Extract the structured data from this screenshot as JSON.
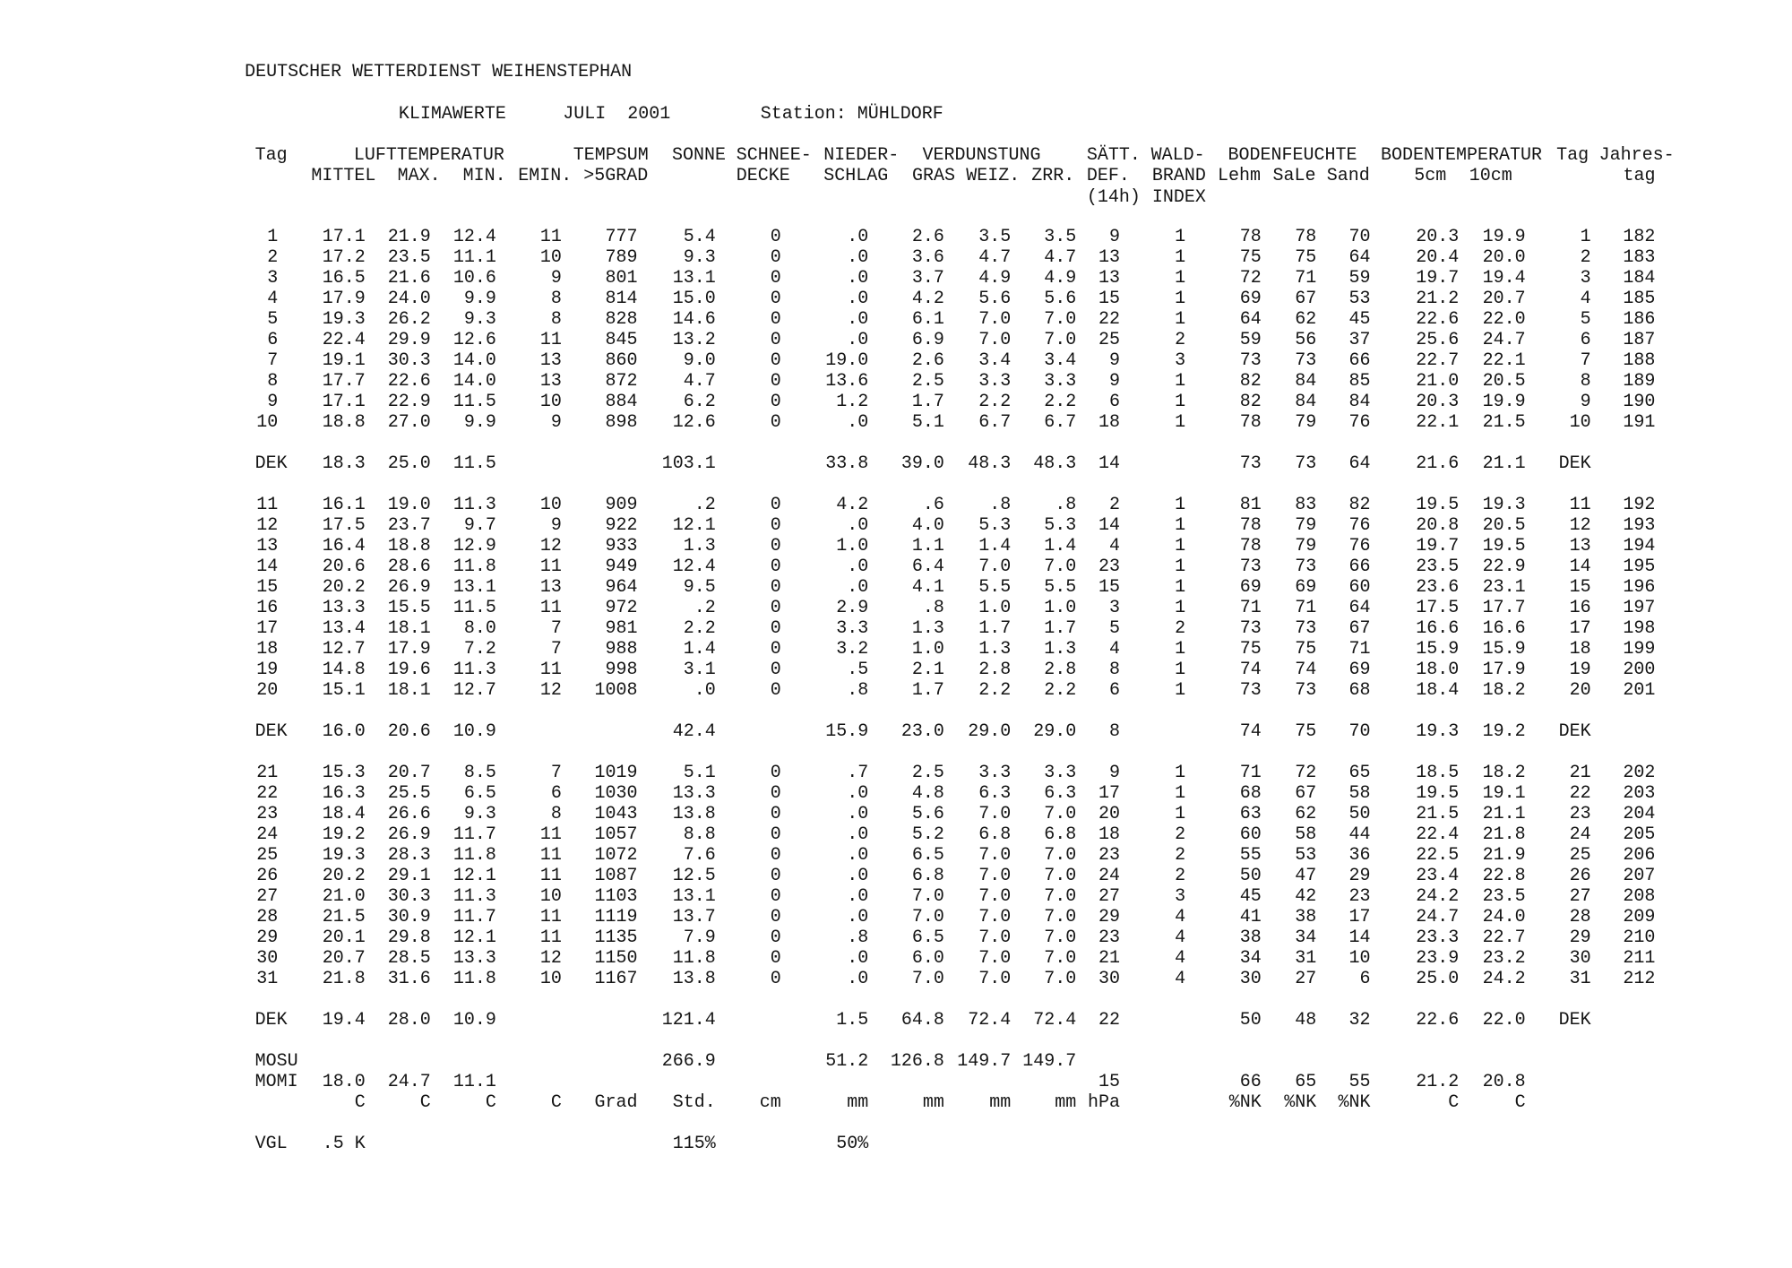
{
  "header": {
    "institution": "DEUTSCHER WETTERDIENST WEIHENSTEPHAN",
    "title": "KLIMAWERTE",
    "period": "JULI  2001",
    "station": "Station: MÜHLDORF"
  },
  "columns": {
    "row1": [
      "Tag",
      "LUFTTEMPERATUR",
      "TEMPSUM",
      "SONNE",
      "SCHNEE-",
      "NIEDER-",
      "VERDUNSTUNG",
      "SÄTT.",
      "WALD-",
      "BODENFEUCHTE",
      "BODENTEMPERATUR",
      "Tag",
      "Jahres-"
    ],
    "row2": [
      "MITTEL",
      "MAX.",
      "MIN.",
      "EMIN.",
      ">5GRAD",
      "DECKE",
      "SCHLAG",
      "GRAS",
      "WEIZ.",
      "ZRR.",
      "DEF.",
      "BRAND",
      "Lehm",
      "SaLe",
      "Sand",
      "5cm",
      "10cm",
      "tag"
    ],
    "row3": [
      "(14h)",
      "INDEX"
    ]
  },
  "table": {
    "blocks": [
      {
        "rows": [
          [
            "1",
            "17.1",
            "21.9",
            "12.4",
            "11",
            "777",
            "5.4",
            "0",
            ".0",
            "2.6",
            "3.5",
            "3.5",
            "9",
            "1",
            "78",
            "78",
            "70",
            "20.3",
            "19.9",
            "1",
            "182"
          ],
          [
            "2",
            "17.2",
            "23.5",
            "11.1",
            "10",
            "789",
            "9.3",
            "0",
            ".0",
            "3.6",
            "4.7",
            "4.7",
            "13",
            "1",
            "75",
            "75",
            "64",
            "20.4",
            "20.0",
            "2",
            "183"
          ],
          [
            "3",
            "16.5",
            "21.6",
            "10.6",
            "9",
            "801",
            "13.1",
            "0",
            ".0",
            "3.7",
            "4.9",
            "4.9",
            "13",
            "1",
            "72",
            "71",
            "59",
            "19.7",
            "19.4",
            "3",
            "184"
          ],
          [
            "4",
            "17.9",
            "24.0",
            "9.9",
            "8",
            "814",
            "15.0",
            "0",
            ".0",
            "4.2",
            "5.6",
            "5.6",
            "15",
            "1",
            "69",
            "67",
            "53",
            "21.2",
            "20.7",
            "4",
            "185"
          ],
          [
            "5",
            "19.3",
            "26.2",
            "9.3",
            "8",
            "828",
            "14.6",
            "0",
            ".0",
            "6.1",
            "7.0",
            "7.0",
            "22",
            "1",
            "64",
            "62",
            "45",
            "22.6",
            "22.0",
            "5",
            "186"
          ],
          [
            "6",
            "22.4",
            "29.9",
            "12.6",
            "11",
            "845",
            "13.2",
            "0",
            ".0",
            "6.9",
            "7.0",
            "7.0",
            "25",
            "2",
            "59",
            "56",
            "37",
            "25.6",
            "24.7",
            "6",
            "187"
          ],
          [
            "7",
            "19.1",
            "30.3",
            "14.0",
            "13",
            "860",
            "9.0",
            "0",
            "19.0",
            "2.6",
            "3.4",
            "3.4",
            "9",
            "3",
            "73",
            "73",
            "66",
            "22.7",
            "22.1",
            "7",
            "188"
          ],
          [
            "8",
            "17.7",
            "22.6",
            "14.0",
            "13",
            "872",
            "4.7",
            "0",
            "13.6",
            "2.5",
            "3.3",
            "3.3",
            "9",
            "1",
            "82",
            "84",
            "85",
            "21.0",
            "20.5",
            "8",
            "189"
          ],
          [
            "9",
            "17.1",
            "22.9",
            "11.5",
            "10",
            "884",
            "6.2",
            "0",
            "1.2",
            "1.7",
            "2.2",
            "2.2",
            "6",
            "1",
            "82",
            "84",
            "84",
            "20.3",
            "19.9",
            "9",
            "190"
          ],
          [
            "10",
            "18.8",
            "27.0",
            "9.9",
            "9",
            "898",
            "12.6",
            "0",
            ".0",
            "5.1",
            "6.7",
            "6.7",
            "18",
            "1",
            "78",
            "79",
            "76",
            "22.1",
            "21.5",
            "10",
            "191"
          ]
        ]
      },
      {
        "rows": [
          [
            "DEK",
            "18.3",
            "25.0",
            "11.5",
            null,
            null,
            "103.1",
            null,
            "33.8",
            "39.0",
            "48.3",
            "48.3",
            "14",
            null,
            "73",
            "73",
            "64",
            "21.6",
            "21.1",
            "DEK",
            null
          ]
        ]
      },
      {
        "rows": [
          [
            "11",
            "16.1",
            "19.0",
            "11.3",
            "10",
            "909",
            ".2",
            "0",
            "4.2",
            ".6",
            ".8",
            ".8",
            "2",
            "1",
            "81",
            "83",
            "82",
            "19.5",
            "19.3",
            "11",
            "192"
          ],
          [
            "12",
            "17.5",
            "23.7",
            "9.7",
            "9",
            "922",
            "12.1",
            "0",
            ".0",
            "4.0",
            "5.3",
            "5.3",
            "14",
            "1",
            "78",
            "79",
            "76",
            "20.8",
            "20.5",
            "12",
            "193"
          ],
          [
            "13",
            "16.4",
            "18.8",
            "12.9",
            "12",
            "933",
            "1.3",
            "0",
            "1.0",
            "1.1",
            "1.4",
            "1.4",
            "4",
            "1",
            "78",
            "79",
            "76",
            "19.7",
            "19.5",
            "13",
            "194"
          ],
          [
            "14",
            "20.6",
            "28.6",
            "11.8",
            "11",
            "949",
            "12.4",
            "0",
            ".0",
            "6.4",
            "7.0",
            "7.0",
            "23",
            "1",
            "73",
            "73",
            "66",
            "23.5",
            "22.9",
            "14",
            "195"
          ],
          [
            "15",
            "20.2",
            "26.9",
            "13.1",
            "13",
            "964",
            "9.5",
            "0",
            ".0",
            "4.1",
            "5.5",
            "5.5",
            "15",
            "1",
            "69",
            "69",
            "60",
            "23.6",
            "23.1",
            "15",
            "196"
          ],
          [
            "16",
            "13.3",
            "15.5",
            "11.5",
            "11",
            "972",
            ".2",
            "0",
            "2.9",
            ".8",
            "1.0",
            "1.0",
            "3",
            "1",
            "71",
            "71",
            "64",
            "17.5",
            "17.7",
            "16",
            "197"
          ],
          [
            "17",
            "13.4",
            "18.1",
            "8.0",
            "7",
            "981",
            "2.2",
            "0",
            "3.3",
            "1.3",
            "1.7",
            "1.7",
            "5",
            "2",
            "73",
            "73",
            "67",
            "16.6",
            "16.6",
            "17",
            "198"
          ],
          [
            "18",
            "12.7",
            "17.9",
            "7.2",
            "7",
            "988",
            "1.4",
            "0",
            "3.2",
            "1.0",
            "1.3",
            "1.3",
            "4",
            "1",
            "75",
            "75",
            "71",
            "15.9",
            "15.9",
            "18",
            "199"
          ],
          [
            "19",
            "14.8",
            "19.6",
            "11.3",
            "11",
            "998",
            "3.1",
            "0",
            ".5",
            "2.1",
            "2.8",
            "2.8",
            "8",
            "1",
            "74",
            "74",
            "69",
            "18.0",
            "17.9",
            "19",
            "200"
          ],
          [
            "20",
            "15.1",
            "18.1",
            "12.7",
            "12",
            "1008",
            ".0",
            "0",
            ".8",
            "1.7",
            "2.2",
            "2.2",
            "6",
            "1",
            "73",
            "73",
            "68",
            "18.4",
            "18.2",
            "20",
            "201"
          ]
        ]
      },
      {
        "rows": [
          [
            "DEK",
            "16.0",
            "20.6",
            "10.9",
            null,
            null,
            "42.4",
            null,
            "15.9",
            "23.0",
            "29.0",
            "29.0",
            "8",
            null,
            "74",
            "75",
            "70",
            "19.3",
            "19.2",
            "DEK",
            null
          ]
        ]
      },
      {
        "rows": [
          [
            "21",
            "15.3",
            "20.7",
            "8.5",
            "7",
            "1019",
            "5.1",
            "0",
            ".7",
            "2.5",
            "3.3",
            "3.3",
            "9",
            "1",
            "71",
            "72",
            "65",
            "18.5",
            "18.2",
            "21",
            "202"
          ],
          [
            "22",
            "16.3",
            "25.5",
            "6.5",
            "6",
            "1030",
            "13.3",
            "0",
            ".0",
            "4.8",
            "6.3",
            "6.3",
            "17",
            "1",
            "68",
            "67",
            "58",
            "19.5",
            "19.1",
            "22",
            "203"
          ],
          [
            "23",
            "18.4",
            "26.6",
            "9.3",
            "8",
            "1043",
            "13.8",
            "0",
            ".0",
            "5.6",
            "7.0",
            "7.0",
            "20",
            "1",
            "63",
            "62",
            "50",
            "21.5",
            "21.1",
            "23",
            "204"
          ],
          [
            "24",
            "19.2",
            "26.9",
            "11.7",
            "11",
            "1057",
            "8.8",
            "0",
            ".0",
            "5.2",
            "6.8",
            "6.8",
            "18",
            "2",
            "60",
            "58",
            "44",
            "22.4",
            "21.8",
            "24",
            "205"
          ],
          [
            "25",
            "19.3",
            "28.3",
            "11.8",
            "11",
            "1072",
            "7.6",
            "0",
            ".0",
            "6.5",
            "7.0",
            "7.0",
            "23",
            "2",
            "55",
            "53",
            "36",
            "22.5",
            "21.9",
            "25",
            "206"
          ],
          [
            "26",
            "20.2",
            "29.1",
            "12.1",
            "11",
            "1087",
            "12.5",
            "0",
            ".0",
            "6.8",
            "7.0",
            "7.0",
            "24",
            "2",
            "50",
            "47",
            "29",
            "23.4",
            "22.8",
            "26",
            "207"
          ],
          [
            "27",
            "21.0",
            "30.3",
            "11.3",
            "10",
            "1103",
            "13.1",
            "0",
            ".0",
            "7.0",
            "7.0",
            "7.0",
            "27",
            "3",
            "45",
            "42",
            "23",
            "24.2",
            "23.5",
            "27",
            "208"
          ],
          [
            "28",
            "21.5",
            "30.9",
            "11.7",
            "11",
            "1119",
            "13.7",
            "0",
            ".0",
            "7.0",
            "7.0",
            "7.0",
            "29",
            "4",
            "41",
            "38",
            "17",
            "24.7",
            "24.0",
            "28",
            "209"
          ],
          [
            "29",
            "20.1",
            "29.8",
            "12.1",
            "11",
            "1135",
            "7.9",
            "0",
            ".8",
            "6.5",
            "7.0",
            "7.0",
            "23",
            "4",
            "38",
            "34",
            "14",
            "23.3",
            "22.7",
            "29",
            "210"
          ],
          [
            "30",
            "20.7",
            "28.5",
            "13.3",
            "12",
            "1150",
            "11.8",
            "0",
            ".0",
            "6.0",
            "7.0",
            "7.0",
            "21",
            "4",
            "34",
            "31",
            "10",
            "23.9",
            "23.2",
            "30",
            "211"
          ],
          [
            "31",
            "21.8",
            "31.6",
            "11.8",
            "10",
            "1167",
            "13.8",
            "0",
            ".0",
            "7.0",
            "7.0",
            "7.0",
            "30",
            "4",
            "30",
            "27",
            "6",
            "25.0",
            "24.2",
            "31",
            "212"
          ]
        ]
      },
      {
        "rows": [
          [
            "DEK",
            "19.4",
            "28.0",
            "10.9",
            null,
            null,
            "121.4",
            null,
            "1.5",
            "64.8",
            "72.4",
            "72.4",
            "22",
            null,
            "50",
            "48",
            "32",
            "22.6",
            "22.0",
            "DEK",
            null
          ]
        ]
      },
      {
        "rows": [
          [
            "MOSU",
            null,
            null,
            null,
            null,
            null,
            "266.9",
            null,
            "51.2",
            "126.8",
            "149.7",
            "149.7",
            null,
            null,
            null,
            null,
            null,
            null,
            null,
            null,
            null
          ],
          [
            "MOMI",
            "18.0",
            "24.7",
            "11.1",
            null,
            null,
            null,
            null,
            null,
            null,
            null,
            null,
            "15",
            null,
            "66",
            "65",
            "55",
            "21.2",
            "20.8",
            null,
            null
          ],
          [
            null,
            "C",
            "C",
            "C",
            "C",
            "Grad",
            "Std.",
            "cm",
            "mm",
            "mm",
            "mm",
            "mm",
            "hPa",
            null,
            "%NK",
            "%NK",
            "%NK",
            "C",
            "C",
            null,
            null
          ]
        ]
      },
      {
        "rows": [
          [
            "VGL",
            ".5 K",
            null,
            null,
            null,
            null,
            "115%",
            null,
            "50%",
            null,
            null,
            null,
            null,
            null,
            null,
            null,
            null,
            null,
            null,
            null,
            null
          ]
        ]
      }
    ]
  }
}
